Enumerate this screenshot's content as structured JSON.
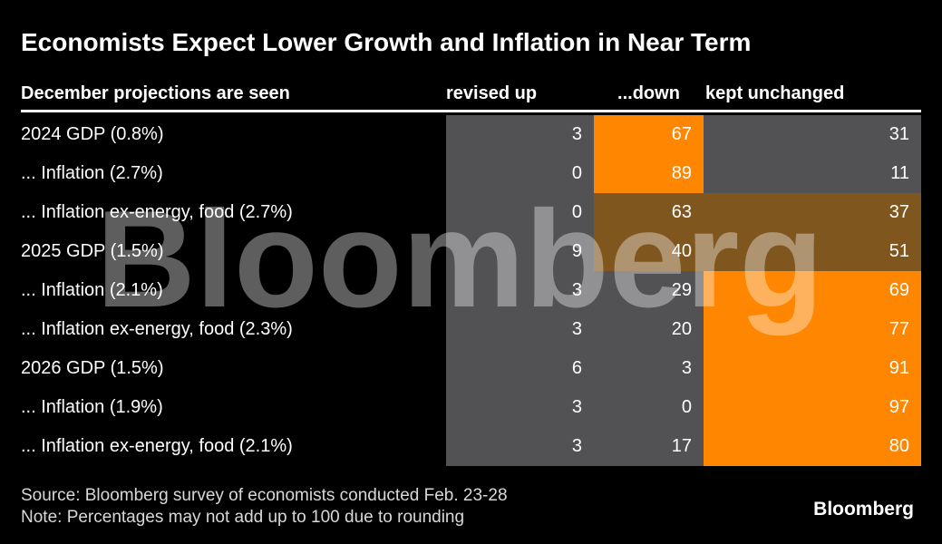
{
  "title": "Economists Expect Lower Growth and Inflation in Near Term",
  "chart_data": {
    "type": "heatmap",
    "title": "Economists Expect Lower Growth and Inflation in Near Term",
    "row_header": "December projections are seen",
    "columns": [
      "revised up",
      "...down",
      "kept unchanged"
    ],
    "rows": [
      {
        "label": "2024 GDP (0.8%)",
        "values": [
          3,
          67,
          31
        ],
        "highlight": "down"
      },
      {
        "label": "... Inflation (2.7%)",
        "values": [
          0,
          89,
          11
        ],
        "highlight": "down"
      },
      {
        "label": "... Inflation ex-energy, food (2.7%)",
        "values": [
          0,
          63,
          37
        ],
        "highlight": "split"
      },
      {
        "label": "2025 GDP (1.5%)",
        "values": [
          9,
          40,
          51
        ],
        "highlight": "split"
      },
      {
        "label": "... Inflation (2.1%)",
        "values": [
          3,
          29,
          69
        ],
        "highlight": "unchanged"
      },
      {
        "label": "... Inflation ex-energy, food (2.3%)",
        "values": [
          3,
          20,
          77
        ],
        "highlight": "unchanged"
      },
      {
        "label": "2026 GDP (1.5%)",
        "values": [
          6,
          3,
          91
        ],
        "highlight": "unchanged"
      },
      {
        "label": "... Inflation (1.9%)",
        "values": [
          3,
          0,
          97
        ],
        "highlight": "unchanged"
      },
      {
        "label": "... Inflation ex-energy, food (2.1%)",
        "values": [
          3,
          17,
          80
        ],
        "highlight": "unchanged"
      }
    ],
    "legend_position": "none",
    "grid": false
  },
  "watermark": "Bloomberg",
  "footer": {
    "source": "Source: Bloomberg survey of economists conducted Feb. 23-28",
    "note": "Note: Percentages may not add up to 100 due to rounding",
    "logo": "Bloomberg"
  },
  "colors": {
    "background": "#000000",
    "cell_gray": "#525254",
    "highlight_orange": "#ff8600",
    "blend_brown": "#80561f",
    "text_white": "#ffffff",
    "footer_gray": "#d8d8d8",
    "watermark": "rgba(255,255,255,0.37)"
  }
}
